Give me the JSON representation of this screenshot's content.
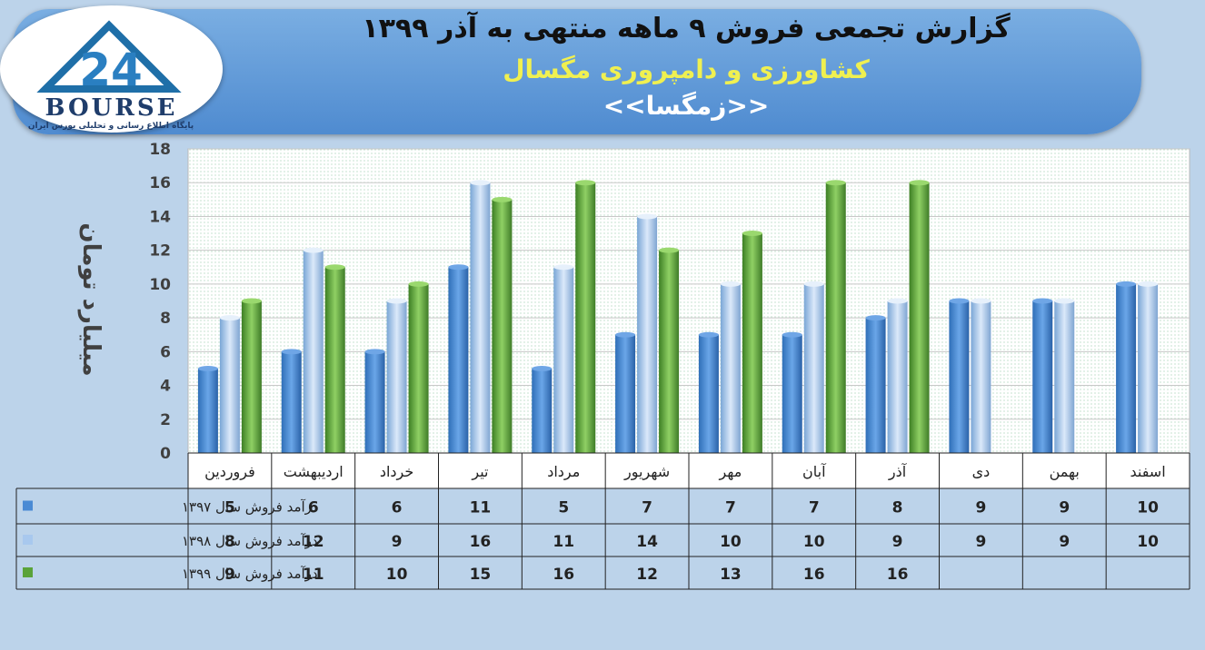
{
  "header": {
    "title_line1": "گزارش تجمعی فروش ۹ ماهه منتهی به آذر ۱۳۹۹",
    "title_line2": "کشاورزی و دامپروری مگسال",
    "title_line3": "<<زمگسا>>",
    "logo_number": "24",
    "logo_text": "BOURSE",
    "logo_subtitle": "پایگاه اطلاع رسانی و تحلیلی بورس ایران"
  },
  "colors": {
    "series_1397": "#4a8ad4",
    "series_1398": "#a8c8ee",
    "series_1399": "#5aa33a",
    "title_line1": "#111111",
    "title_line2": "#f0f050",
    "title_line3": "#ffffff"
  },
  "chart_data": {
    "type": "bar",
    "ylabel": "میلیارد تومان",
    "ylim": [
      0,
      18
    ],
    "yticks": [
      "0",
      "2",
      "4",
      "6",
      "8",
      "10",
      "12",
      "14",
      "16",
      "18"
    ],
    "grid": true,
    "categories": [
      "فروردین",
      "اردیبهشت",
      "خرداد",
      "تیر",
      "مرداد",
      "شهریور",
      "مهر",
      "آبان",
      "آذر",
      "دی",
      "بهمن",
      "اسفند"
    ],
    "series": [
      {
        "name": "درآمد فروش سال ۱۳۹۷",
        "values": [
          5,
          6,
          6,
          11,
          5,
          7,
          7,
          7,
          8,
          9,
          9,
          10
        ]
      },
      {
        "name": "درآمد فروش سال ۱۳۹۸",
        "values": [
          8,
          12,
          9,
          16,
          11,
          14,
          10,
          10,
          9,
          9,
          9,
          10
        ]
      },
      {
        "name": "درآمد فروش سال ۱۳۹۹",
        "values": [
          9,
          11,
          10,
          15,
          16,
          12,
          13,
          16,
          16,
          null,
          null,
          null
        ]
      }
    ]
  }
}
